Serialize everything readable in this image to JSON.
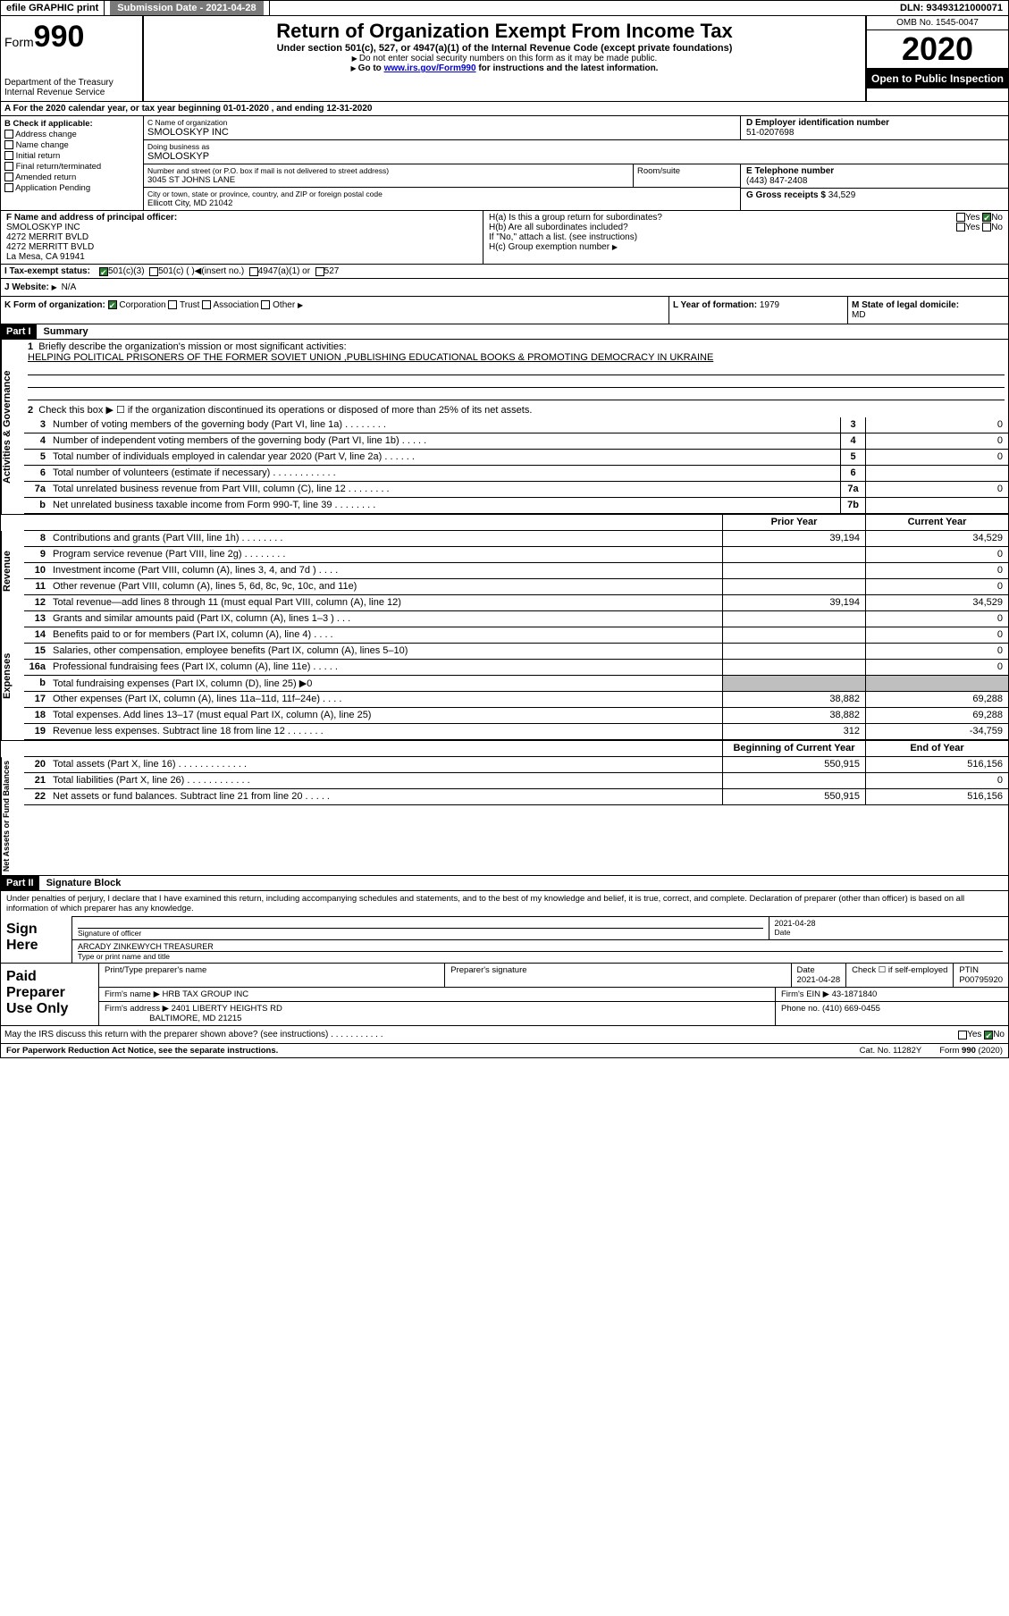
{
  "topbar": {
    "efile": "efile GRAPHIC print",
    "submission_label": "Submission Date - 2021-04-28",
    "dln": "DLN: 93493121000071"
  },
  "header": {
    "form_label_small": "Form",
    "form_label_big": "990",
    "title": "Return of Organization Exempt From Income Tax",
    "subtitle": "Under section 501(c), 527, or 4947(a)(1) of the Internal Revenue Code (except private foundations)",
    "note1": "Do not enter social security numbers on this form as it may be made public.",
    "note2_pre": "Go to ",
    "note2_link": "www.irs.gov/Form990",
    "note2_post": " for instructions and the latest information.",
    "dept": "Department of the Treasury\nInternal Revenue Service",
    "omb": "OMB No. 1545-0047",
    "year": "2020",
    "open": "Open to Public Inspection"
  },
  "rowA": "A For the 2020 calendar year, or tax year beginning 01-01-2020     , and ending 12-31-2020",
  "B": {
    "title": "B Check if applicable:",
    "opts": [
      "Address change",
      "Name change",
      "Initial return",
      "Final return/terminated",
      "Amended return",
      "Application Pending"
    ]
  },
  "C": {
    "name_label": "C Name of organization",
    "name": "SMOLOSKYP INC",
    "dba_label": "Doing business as",
    "dba": "SMOLOSKYP",
    "street_label": "Number and street (or P.O. box if mail is not delivered to street address)",
    "street": "3045 ST JOHNS LANE",
    "room_label": "Room/suite",
    "city_label": "City or town, state or province, country, and ZIP or foreign postal code",
    "city": "Ellicott City, MD  21042"
  },
  "D": {
    "label": "D Employer identification number",
    "value": "51-0207698"
  },
  "E": {
    "label": "E Telephone number",
    "value": "(443) 847-2408"
  },
  "G": {
    "label": "G Gross receipts $",
    "value": "34,529"
  },
  "F": {
    "label": "F  Name and address of principal officer:",
    "lines": [
      "SMOLOSKYP INC",
      "4272 MERRIT BVLD",
      "4272 MERRITT BVLD",
      "La Mesa, CA  91941"
    ]
  },
  "H": {
    "a": "H(a)  Is this a group return for subordinates?",
    "b": "H(b)  Are all subordinates included?",
    "b_note": "If \"No,\" attach a list. (see instructions)",
    "c": "H(c)  Group exemption number",
    "yes": "Yes",
    "no": "No"
  },
  "I": {
    "label": "I  Tax-exempt status:",
    "opt1": "501(c)(3)",
    "opt2": "501(c) (  )",
    "opt2b": "(insert no.)",
    "opt3": "4947(a)(1) or",
    "opt4": "527"
  },
  "J": {
    "label": "J  Website:",
    "value": "N/A"
  },
  "K": {
    "label": "K Form of organization:",
    "opts": [
      "Corporation",
      "Trust",
      "Association",
      "Other"
    ]
  },
  "L": {
    "label": "L Year of formation:",
    "value": "1979"
  },
  "M": {
    "label": "M State of legal domicile:",
    "value": "MD"
  },
  "part1": {
    "hdr": "Part I",
    "title": "Summary"
  },
  "summary": {
    "sec1": {
      "tab": "Activities & Governance",
      "l1": "Briefly describe the organization's mission or most significant activities:",
      "l1v": "HELPING POLITICAL PRISONERS OF THE FORMER SOVIET UNION ,PUBLISHING EDUCATIONAL BOOKS & PROMOTING DEMOCRACY IN UKRAINE",
      "l2": "Check this box ▶ ☐  if the organization discontinued its operations or disposed of more than 25% of its net assets.",
      "rows": [
        {
          "n": "3",
          "d": "Number of voting members of the governing body (Part VI, line 1a)  .  .  .  .  .  .  .  .",
          "b": "3",
          "v": "0"
        },
        {
          "n": "4",
          "d": "Number of independent voting members of the governing body (Part VI, line 1b)  .  .  .  .  .",
          "b": "4",
          "v": "0"
        },
        {
          "n": "5",
          "d": "Total number of individuals employed in calendar year 2020 (Part V, line 2a)  .  .  .  .  .  .",
          "b": "5",
          "v": "0"
        },
        {
          "n": "6",
          "d": "Total number of volunteers (estimate if necessary)   .  .  .  .  .  .  .  .  .  .  .  .",
          "b": "6",
          "v": ""
        },
        {
          "n": "7a",
          "d": "Total unrelated business revenue from Part VIII, column (C), line 12  .  .  .  .  .  .  .  .",
          "b": "7a",
          "v": "0"
        },
        {
          "n": "b",
          "d": "Net unrelated business taxable income from Form 990-T, line 39   .  .  .  .  .  .  .  .",
          "b": "7b",
          "v": ""
        }
      ]
    },
    "header2": {
      "py": "Prior Year",
      "cy": "Current Year"
    },
    "sec2": {
      "tab": "Revenue",
      "rows": [
        {
          "n": "8",
          "d": "Contributions and grants (Part VIII, line 1h)   .  .  .  .  .  .  .  .",
          "py": "39,194",
          "cy": "34,529"
        },
        {
          "n": "9",
          "d": "Program service revenue (Part VIII, line 2g)  .  .  .  .  .  .  .  .",
          "py": "",
          "cy": "0"
        },
        {
          "n": "10",
          "d": "Investment income (Part VIII, column (A), lines 3, 4, and 7d )   .  .  .  .",
          "py": "",
          "cy": "0"
        },
        {
          "n": "11",
          "d": "Other revenue (Part VIII, column (A), lines 5, 6d, 8c, 9c, 10c, and 11e)",
          "py": "",
          "cy": "0"
        },
        {
          "n": "12",
          "d": "Total revenue—add lines 8 through 11 (must equal Part VIII, column (A), line 12)",
          "py": "39,194",
          "cy": "34,529"
        }
      ]
    },
    "sec3": {
      "tab": "Expenses",
      "rows": [
        {
          "n": "13",
          "d": "Grants and similar amounts paid (Part IX, column (A), lines 1–3 )  .  .  .",
          "py": "",
          "cy": "0"
        },
        {
          "n": "14",
          "d": "Benefits paid to or for members (Part IX, column (A), line 4)  .  .  .  .",
          "py": "",
          "cy": "0"
        },
        {
          "n": "15",
          "d": "Salaries, other compensation, employee benefits (Part IX, column (A), lines 5–10)",
          "py": "",
          "cy": "0"
        },
        {
          "n": "16a",
          "d": "Professional fundraising fees (Part IX, column (A), line 11e)  .  .  .  .  .",
          "py": "",
          "cy": "0"
        },
        {
          "n": "b",
          "d": "Total fundraising expenses (Part IX, column (D), line 25) ▶0",
          "gray": true
        },
        {
          "n": "17",
          "d": "Other expenses (Part IX, column (A), lines 11a–11d, 11f–24e)  .  .  .  .",
          "py": "38,882",
          "cy": "69,288"
        },
        {
          "n": "18",
          "d": "Total expenses. Add lines 13–17 (must equal Part IX, column (A), line 25)",
          "py": "38,882",
          "cy": "69,288"
        },
        {
          "n": "19",
          "d": "Revenue less expenses. Subtract line 18 from line 12 .  .  .  .  .  .  .",
          "py": "312",
          "cy": "-34,759"
        }
      ]
    },
    "header3": {
      "py": "Beginning of Current Year",
      "cy": "End of Year"
    },
    "sec4": {
      "tab": "Net Assets or Fund Balances",
      "rows": [
        {
          "n": "20",
          "d": "Total assets (Part X, line 16) .  .  .  .  .  .  .  .  .  .  .  .  .",
          "py": "550,915",
          "cy": "516,156"
        },
        {
          "n": "21",
          "d": "Total liabilities (Part X, line 26) .  .  .  .  .  .  .  .  .  .  .  .",
          "py": "",
          "cy": "0"
        },
        {
          "n": "22",
          "d": "Net assets or fund balances. Subtract line 21 from line 20  .  .  .  .  .",
          "py": "550,915",
          "cy": "516,156"
        }
      ]
    }
  },
  "part2": {
    "hdr": "Part II",
    "title": "Signature Block"
  },
  "sig": {
    "intro": "Under penalties of perjury, I declare that I have examined this return, including accompanying schedules and statements, and to the best of my knowledge and belief, it is true, correct, and complete. Declaration of preparer (other than officer) is based on all information of which preparer has any knowledge.",
    "sign_here": "Sign Here",
    "sig_officer": "Signature of officer",
    "date": "2021-04-28",
    "date_label": "Date",
    "name": "ARCADY ZINKEWYCH  TREASURER",
    "name_label": "Type or print name and title"
  },
  "paid": {
    "title": "Paid Preparer Use Only",
    "r1": {
      "c1": "Print/Type preparer's name",
      "c2": "Preparer's signature",
      "c3": "Date\n2021-04-28",
      "c4": "Check ☐ if self-employed",
      "c5": "PTIN\nP00795920"
    },
    "r2": {
      "c1": "Firm's name      ▶ HRB TAX GROUP INC",
      "c2": "Firm's EIN ▶ 43-1871840"
    },
    "r3": {
      "c1": "Firm's address ▶ 2401 LIBERTY HEIGHTS RD",
      "c2": "Phone no. (410) 669-0455"
    },
    "r3b": "BALTIMORE, MD  21215"
  },
  "discuss": {
    "q": "May the IRS discuss this return with the preparer shown above? (see instructions)   .  .  .  .  .  .  .  .  .  .  .",
    "yes": "Yes",
    "no": "No"
  },
  "footer": {
    "f1": "For Paperwork Reduction Act Notice, see the separate instructions.",
    "f2": "Cat. No. 11282Y",
    "f3": "Form 990 (2020)"
  }
}
